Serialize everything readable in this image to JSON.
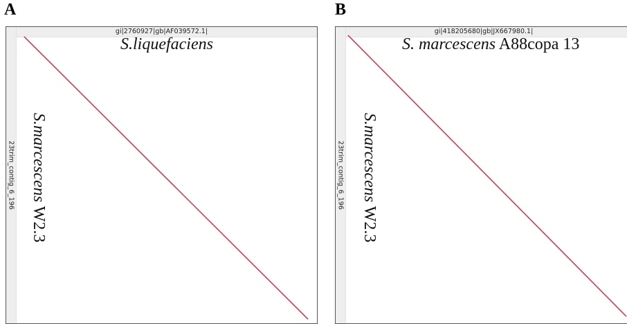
{
  "panels": [
    {
      "letter": "A",
      "accession_x": "gi|2760927|gb|AF039572.1|",
      "accession_y": "23trim_contig_6_196",
      "seq_x_italic": "S.liquefaciens",
      "seq_x_rest": "",
      "seq_y_italic": "S.marcescens",
      "seq_y_rest": " W2.3",
      "line_color": "#d43a4a"
    },
    {
      "letter": "B",
      "accession_x": "gi|418205680|gb|JX667980.1|",
      "accession_y": "23trim_contig_6_196",
      "seq_x_italic": "S. marcescens",
      "seq_x_rest": " A88copa 13",
      "seq_y_italic": "S.marcescens",
      "seq_y_rest": " W2.3",
      "line_color": "#d43a4a"
    }
  ]
}
